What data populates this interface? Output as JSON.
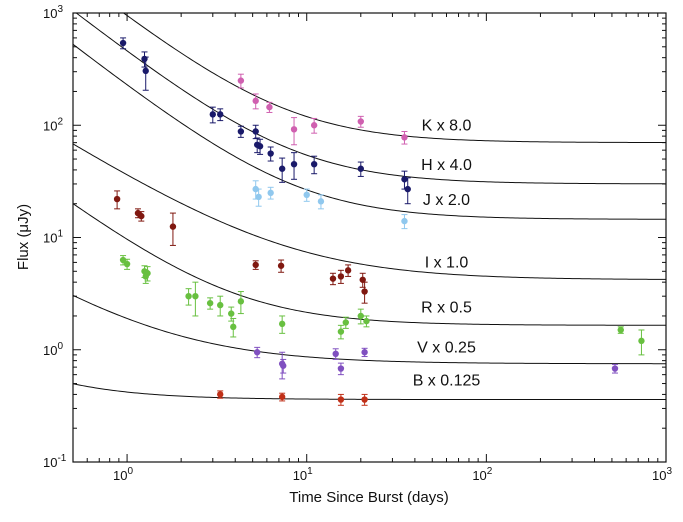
{
  "chart_data": {
    "type": "scatter",
    "xlabel": "Time Since Burst (days)",
    "ylabel": "Flux (μJy)",
    "x_scale": "log",
    "y_scale": "log",
    "xlim": [
      0.5,
      1000
    ],
    "ylim": [
      0.1,
      1000
    ],
    "x_ticks": [
      {
        "value": 1,
        "base": "10",
        "exp": "0"
      },
      {
        "value": 10,
        "base": "10",
        "exp": "1"
      },
      {
        "value": 100,
        "base": "10",
        "exp": "2"
      },
      {
        "value": 1000,
        "base": "10",
        "exp": "3"
      }
    ],
    "y_ticks": [
      {
        "value": 0.1,
        "base": "10",
        "exp": "-1"
      },
      {
        "value": 1,
        "base": "10",
        "exp": "0"
      },
      {
        "value": 10,
        "base": "10",
        "exp": "1"
      },
      {
        "value": 100,
        "base": "10",
        "exp": "2"
      },
      {
        "value": 1000,
        "base": "10",
        "exp": "3"
      }
    ],
    "grid": false,
    "series": [
      {
        "name": "K x 8.0",
        "color": "#d060b0",
        "label_at": {
          "x": 60,
          "y": 90
        },
        "model": {
          "F0": 880,
          "alpha": 1.25,
          "host": 70
        },
        "points": [
          {
            "x": 4.3,
            "y": 250,
            "err": 35
          },
          {
            "x": 5.2,
            "y": 165,
            "err": 25
          },
          {
            "x": 6.2,
            "y": 145,
            "err": 15
          },
          {
            "x": 8.5,
            "y": 92,
            "err": 25
          },
          {
            "x": 11.0,
            "y": 100,
            "err": 15
          },
          {
            "x": 20.0,
            "y": 108,
            "err": 12
          },
          {
            "x": 35.0,
            "y": 78,
            "err": 10
          }
        ]
      },
      {
        "name": "H x 4.0",
        "color": "#1a1a6a",
        "label_at": {
          "x": 60,
          "y": 40
        },
        "model": {
          "F0": 430,
          "alpha": 1.25,
          "host": 30
        },
        "points": [
          {
            "x": 0.95,
            "y": 540,
            "err": 60
          },
          {
            "x": 1.25,
            "y": 390,
            "err": 60
          },
          {
            "x": 1.27,
            "y": 305,
            "err": 100
          },
          {
            "x": 3.0,
            "y": 125,
            "err": 20
          },
          {
            "x": 3.3,
            "y": 125,
            "err": 15
          },
          {
            "x": 4.3,
            "y": 88,
            "err": 10
          },
          {
            "x": 5.2,
            "y": 88,
            "err": 12
          },
          {
            "x": 5.3,
            "y": 67,
            "err": 10
          },
          {
            "x": 5.5,
            "y": 65,
            "err": 10
          },
          {
            "x": 6.3,
            "y": 56,
            "err": 8
          },
          {
            "x": 7.3,
            "y": 41,
            "err": 10
          },
          {
            "x": 8.5,
            "y": 45,
            "err": 12
          },
          {
            "x": 11.0,
            "y": 45,
            "err": 8
          },
          {
            "x": 20.0,
            "y": 41,
            "err": 6
          },
          {
            "x": 35.0,
            "y": 33,
            "err": 6
          },
          {
            "x": 36.5,
            "y": 27,
            "err": 7
          }
        ]
      },
      {
        "name": "J x 2.0",
        "color": "#90c8ee",
        "label_at": {
          "x": 60,
          "y": 19.5
        },
        "model": {
          "F0": 215,
          "alpha": 1.25,
          "host": 14.5
        },
        "points": [
          {
            "x": 5.2,
            "y": 27,
            "err": 5
          },
          {
            "x": 5.4,
            "y": 23,
            "err": 4
          },
          {
            "x": 6.3,
            "y": 25,
            "err": 3
          },
          {
            "x": 10.0,
            "y": 24,
            "err": 3
          },
          {
            "x": 12.0,
            "y": 21,
            "err": 3
          },
          {
            "x": 35.0,
            "y": 14,
            "err": 2
          }
        ]
      },
      {
        "name": "I x 1.0",
        "color": "#801810",
        "label_at": {
          "x": 60,
          "y": 5.4
        },
        "model": {
          "F0": 32,
          "alpha": 1.0,
          "host": 4.2
        },
        "points": [
          {
            "x": 0.88,
            "y": 22,
            "err": 4
          },
          {
            "x": 1.15,
            "y": 16.5,
            "err": 1.5
          },
          {
            "x": 1.2,
            "y": 15.5,
            "err": 1.5
          },
          {
            "x": 1.8,
            "y": 12.5,
            "err": 4
          },
          {
            "x": 5.2,
            "y": 5.7,
            "err": 0.5
          },
          {
            "x": 7.2,
            "y": 5.6,
            "err": 0.7
          },
          {
            "x": 14.0,
            "y": 4.3,
            "err": 0.5
          },
          {
            "x": 15.5,
            "y": 4.5,
            "err": 0.6
          },
          {
            "x": 17.0,
            "y": 5.1,
            "err": 0.6
          },
          {
            "x": 20.5,
            "y": 4.2,
            "err": 0.6
          },
          {
            "x": 21.0,
            "y": 3.3,
            "err": 0.7
          }
        ]
      },
      {
        "name": "R x 0.5",
        "color": "#68c040",
        "label_at": {
          "x": 60,
          "y": 2.15
        },
        "model": {
          "F0": 8,
          "alpha": 1.2,
          "host": 1.65
        },
        "points": [
          {
            "x": 0.95,
            "y": 6.3,
            "err": 0.6
          },
          {
            "x": 1.0,
            "y": 5.8,
            "err": 0.6
          },
          {
            "x": 1.25,
            "y": 5.0,
            "err": 0.6
          },
          {
            "x": 1.27,
            "y": 4.5,
            "err": 0.6
          },
          {
            "x": 1.3,
            "y": 4.8,
            "err": 0.7
          },
          {
            "x": 2.2,
            "y": 3.0,
            "err": 0.5
          },
          {
            "x": 2.4,
            "y": 3.0,
            "err": 1.0
          },
          {
            "x": 2.9,
            "y": 2.6,
            "err": 0.3
          },
          {
            "x": 3.3,
            "y": 2.5,
            "err": 0.5
          },
          {
            "x": 3.8,
            "y": 2.1,
            "err": 0.3
          },
          {
            "x": 3.9,
            "y": 1.6,
            "err": 0.3
          },
          {
            "x": 4.3,
            "y": 2.7,
            "err": 0.6
          },
          {
            "x": 7.3,
            "y": 1.7,
            "err": 0.3
          },
          {
            "x": 15.5,
            "y": 1.45,
            "err": 0.2
          },
          {
            "x": 16.5,
            "y": 1.75,
            "err": 0.2
          },
          {
            "x": 20.0,
            "y": 2.0,
            "err": 0.3
          },
          {
            "x": 21.5,
            "y": 1.8,
            "err": 0.2
          },
          {
            "x": 560,
            "y": 1.5,
            "err": 0.1
          },
          {
            "x": 730,
            "y": 1.2,
            "err": 0.3
          }
        ]
      },
      {
        "name": "V x 0.25",
        "color": "#8050c0",
        "label_at": {
          "x": 60,
          "y": 0.95
        },
        "model": {
          "F0": 1.15,
          "alpha": 1.0,
          "host": 0.75
        },
        "points": [
          {
            "x": 5.3,
            "y": 0.95,
            "err": 0.1
          },
          {
            "x": 7.3,
            "y": 0.75,
            "err": 0.2
          },
          {
            "x": 7.4,
            "y": 0.72,
            "err": 0.1
          },
          {
            "x": 14.5,
            "y": 0.92,
            "err": 0.1
          },
          {
            "x": 15.5,
            "y": 0.68,
            "err": 0.08
          },
          {
            "x": 21.0,
            "y": 0.95,
            "err": 0.08
          },
          {
            "x": 520,
            "y": 0.68,
            "err": 0.06
          }
        ]
      },
      {
        "name": "B x 0.125",
        "color": "#c03018",
        "label_at": {
          "x": 60,
          "y": 0.48
        },
        "model": {
          "F0": 0.06,
          "alpha": 1.2,
          "host": 0.36
        },
        "points": [
          {
            "x": 3.3,
            "y": 0.4,
            "err": 0.03
          },
          {
            "x": 7.3,
            "y": 0.38,
            "err": 0.03
          },
          {
            "x": 15.5,
            "y": 0.36,
            "err": 0.04
          },
          {
            "x": 21.0,
            "y": 0.36,
            "err": 0.04
          }
        ]
      }
    ]
  }
}
